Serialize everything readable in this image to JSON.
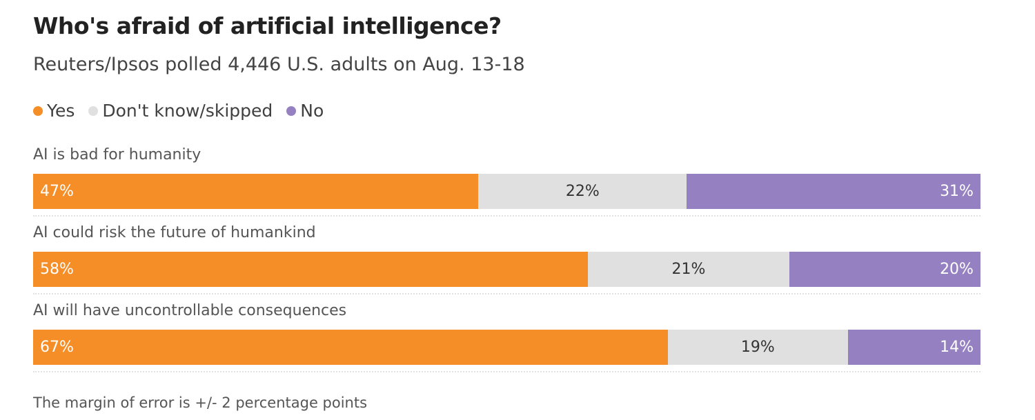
{
  "chart_data": {
    "type": "bar",
    "orientation": "horizontal",
    "stacked": true,
    "normalized": true,
    "title": "Who's afraid of artificial intelligence?",
    "subtitle": "Reuters/Ipsos polled 4,446 U.S. adults on Aug. 13-18",
    "categories": [
      "AI is bad for humanity",
      "AI could risk the future of humankind",
      "AI will have uncontrollable consequences"
    ],
    "series": [
      {
        "name": "Yes",
        "key": "yes",
        "color": "#f58e26",
        "values": [
          47,
          58,
          67
        ]
      },
      {
        "name": "Don't know/skipped",
        "key": "dk",
        "color": "#e0e0e0",
        "values": [
          22,
          21,
          19
        ]
      },
      {
        "name": "No",
        "key": "no",
        "color": "#9581c1",
        "values": [
          31,
          20,
          14
        ]
      }
    ],
    "value_suffix": "%",
    "legend_position": "top-left",
    "grid": false,
    "note": "The margin of error is +/- 2 percentage points"
  }
}
